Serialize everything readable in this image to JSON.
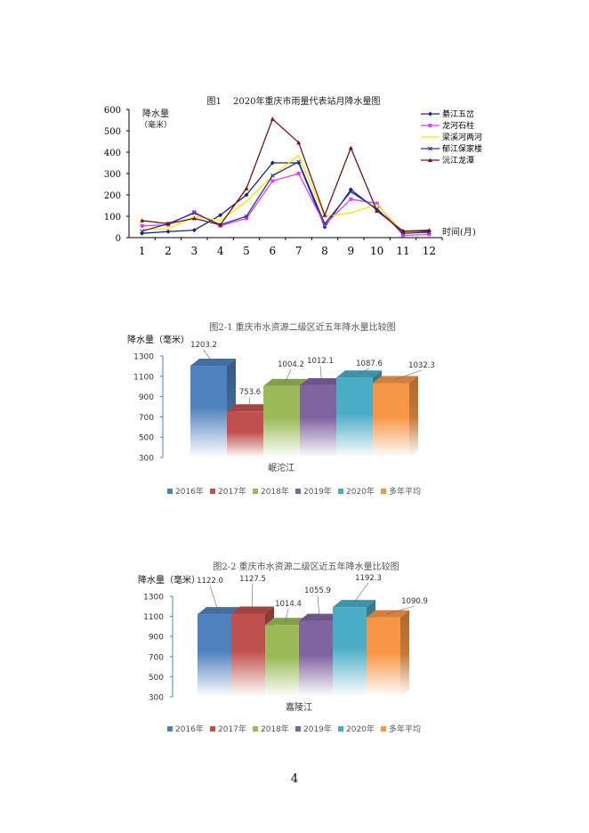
{
  "page_number": "4",
  "chart_data": [
    {
      "type": "line",
      "title": "图1　 2020年重庆市雨量代表站月降水量图",
      "ylabel_line1": "降水量",
      "ylabel_line2": "（毫米）",
      "xlabel": "时间(月)",
      "ylim": [
        0,
        600
      ],
      "yticks": [
        "0",
        "100",
        "200",
        "300",
        "400",
        "500",
        "600"
      ],
      "x": [
        "1",
        "2",
        "3",
        "4",
        "5",
        "6",
        "7",
        "8",
        "9",
        "10",
        "11",
        "12"
      ],
      "legend_position": "top-right",
      "series": [
        {
          "name": "綦江五岔",
          "color": "#1a237e",
          "marker": "diamond",
          "values": [
            20,
            28,
            35,
            105,
            200,
            350,
            350,
            50,
            225,
            130,
            30,
            30
          ]
        },
        {
          "name": "龙河石柱",
          "color": "#e040fb",
          "marker": "square",
          "values": [
            55,
            60,
            120,
            55,
            90,
            265,
            300,
            60,
            180,
            160,
            10,
            15
          ]
        },
        {
          "name": "梁溪河两河",
          "color": "#f2ea00",
          "marker": "none",
          "values": [
            40,
            40,
            100,
            80,
            170,
            290,
            385,
            100,
            115,
            155,
            25,
            25
          ]
        },
        {
          "name": "郁江保家楼",
          "color": "#283593",
          "marker": "x",
          "values": [
            30,
            65,
            115,
            60,
            100,
            290,
            355,
            65,
            215,
            135,
            20,
            25
          ]
        },
        {
          "name": "沅江龙潭",
          "color": "#7b1010",
          "marker": "triangle",
          "values": [
            80,
            65,
            90,
            60,
            230,
            555,
            445,
            105,
            420,
            125,
            30,
            35
          ]
        }
      ]
    },
    {
      "type": "bar",
      "title": "图2-1  重庆市水资源二级区近五年降水量比较图",
      "ylabel": "降水量（毫米）",
      "category": "岷沱江",
      "ylim": [
        300,
        1300
      ],
      "yticks": [
        "300",
        "500",
        "700",
        "900",
        "1100",
        "1300"
      ],
      "series": [
        {
          "name": "2016年",
          "value": 1203.2,
          "label": "1203.2",
          "color": "#4f81bd"
        },
        {
          "name": "2017年",
          "value": 753.6,
          "label": "753.6",
          "color": "#c0504d"
        },
        {
          "name": "2018年",
          "value": 1004.2,
          "label": "1004.2",
          "color": "#9bbb59"
        },
        {
          "name": "2019年",
          "value": 1012.1,
          "label": "1012.1",
          "color": "#8064a2"
        },
        {
          "name": "2020年",
          "value": 1087.6,
          "label": "1087.6",
          "color": "#4bacc6"
        },
        {
          "name": "多年平均",
          "value": 1032.3,
          "label": "1032.3",
          "color": "#f79646"
        }
      ]
    },
    {
      "type": "bar",
      "title": "图2-2 重庆市水资源二级区近五年降水量比较图",
      "ylabel": "降水量（毫米）",
      "category": "嘉陵江",
      "ylim": [
        300,
        1300
      ],
      "yticks": [
        "300",
        "500",
        "700",
        "900",
        "1100",
        "1300"
      ],
      "series": [
        {
          "name": "2016年",
          "value": 1122.0,
          "label": "1122.0",
          "color": "#4f81bd"
        },
        {
          "name": "2017年",
          "value": 1127.5,
          "label": "1127.5",
          "color": "#c0504d"
        },
        {
          "name": "2018年",
          "value": 1014.4,
          "label": "1014.4",
          "color": "#9bbb59"
        },
        {
          "name": "2019年",
          "value": 1055.9,
          "label": "1055.9",
          "color": "#8064a2"
        },
        {
          "name": "2020年",
          "value": 1192.3,
          "label": "1192.3",
          "color": "#4bacc6"
        },
        {
          "name": "多年平均",
          "value": 1090.9,
          "label": "1090.9",
          "color": "#f79646"
        }
      ]
    }
  ]
}
